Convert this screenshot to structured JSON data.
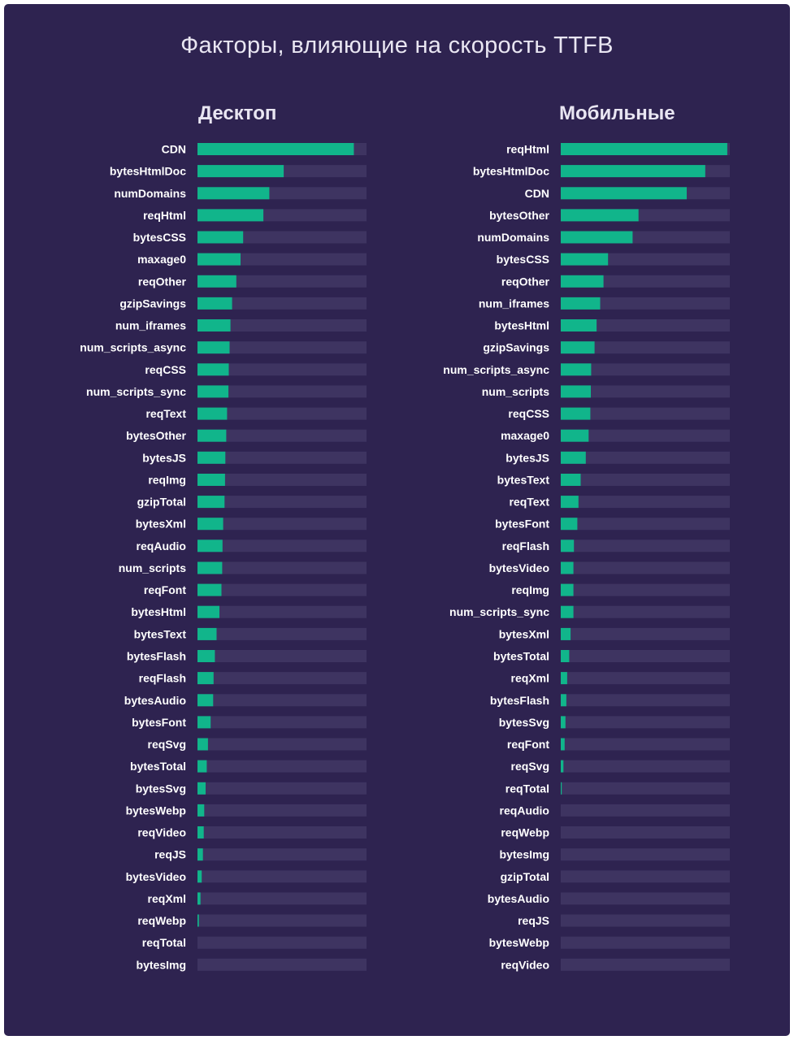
{
  "colors": {
    "background": "#2e2350",
    "track": "#3e3461",
    "bar": "#11b58b",
    "text": "#ffffff"
  },
  "chart_data": {
    "type": "bar",
    "orientation": "horizontal",
    "title": "Факторы, влияющие на скорость TTFB",
    "xlim": [
      0,
      1
    ],
    "grid": false,
    "panels": [
      {
        "title": "Десктоп",
        "categories": [
          "CDN",
          "bytesHtmlDoc",
          "numDomains",
          "reqHtml",
          "bytesCSS",
          "maxage0",
          "reqOther",
          "gzipSavings",
          "num_iframes",
          "num_scripts_async",
          "reqCSS",
          "num_scripts_sync",
          "reqText",
          "bytesOther",
          "bytesJS",
          "reqImg",
          "gzipTotal",
          "bytesXml",
          "reqAudio",
          "num_scripts",
          "reqFont",
          "bytesHtml",
          "bytesText",
          "bytesFlash",
          "reqFlash",
          "bytesAudio",
          "bytesFont",
          "reqSvg",
          "bytesTotal",
          "bytesSvg",
          "bytesWebp",
          "reqVideo",
          "reqJS",
          "bytesVideo",
          "reqXml",
          "reqWebp",
          "reqTotal",
          "bytesImg"
        ],
        "values": [
          0.925,
          0.51,
          0.425,
          0.39,
          0.27,
          0.255,
          0.23,
          0.205,
          0.195,
          0.19,
          0.185,
          0.183,
          0.175,
          0.17,
          0.165,
          0.163,
          0.16,
          0.152,
          0.148,
          0.146,
          0.142,
          0.13,
          0.113,
          0.103,
          0.095,
          0.093,
          0.078,
          0.062,
          0.055,
          0.048,
          0.04,
          0.037,
          0.032,
          0.025,
          0.018,
          0.008,
          0,
          0
        ]
      },
      {
        "title": "Мобильные",
        "categories": [
          "reqHtml",
          "bytesHtmlDoc",
          "CDN",
          "bytesOther",
          "numDomains",
          "bytesCSS",
          "reqOther",
          "num_iframes",
          "bytesHtml",
          "gzipSavings",
          "num_scripts_async",
          "num_scripts",
          "reqCSS",
          "maxage0",
          "bytesJS",
          "bytesText",
          "reqText",
          "bytesFont",
          "reqFlash",
          "bytesVideo",
          "reqImg",
          "num_scripts_sync",
          "bytesXml",
          "bytesTotal",
          "reqXml",
          "bytesFlash",
          "bytesSvg",
          "reqFont",
          "reqSvg",
          "reqTotal",
          "reqAudio",
          "reqWebp",
          "bytesImg",
          "gzipTotal",
          "bytesAudio",
          "reqJS",
          "bytesWebp",
          "reqVideo"
        ],
        "values": [
          0.985,
          0.855,
          0.745,
          0.46,
          0.425,
          0.28,
          0.253,
          0.233,
          0.212,
          0.2,
          0.18,
          0.178,
          0.175,
          0.165,
          0.148,
          0.118,
          0.105,
          0.098,
          0.078,
          0.075,
          0.075,
          0.075,
          0.058,
          0.05,
          0.038,
          0.033,
          0.028,
          0.023,
          0.016,
          0.006,
          0,
          0,
          0,
          0,
          0,
          0,
          0,
          0
        ]
      }
    ]
  }
}
